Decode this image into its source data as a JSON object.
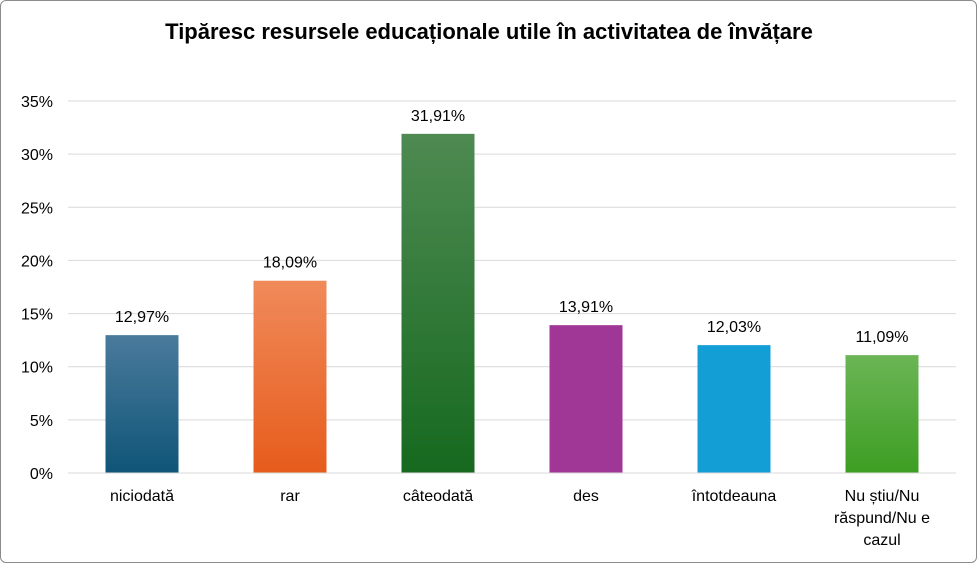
{
  "chart_data": {
    "type": "bar",
    "title": "Tipăresc resursele educaționale utile în activitatea de învățare",
    "xlabel": "",
    "ylabel": "",
    "categories": [
      "niciodată",
      "rar",
      "câteodată",
      "des",
      "întotdeauna",
      "Nu știu/Nu răspund/Nu e cazul"
    ],
    "category_lines": [
      [
        "niciodată"
      ],
      [
        "rar"
      ],
      [
        "câteodată"
      ],
      [
        "des"
      ],
      [
        "întotdeauna"
      ],
      [
        "Nu știu/Nu",
        "răspund/Nu e",
        "cazul"
      ]
    ],
    "values": [
      12.97,
      18.09,
      31.91,
      13.91,
      12.03,
      11.09
    ],
    "value_labels": [
      "12,97%",
      "18,09%",
      "31,91%",
      "13,91%",
      "12,03%",
      "11,09%"
    ],
    "ylim": [
      0,
      35
    ],
    "yticks": [
      0,
      5,
      10,
      15,
      20,
      25,
      30,
      35
    ],
    "ytick_labels": [
      "0%",
      "5%",
      "10%",
      "15%",
      "20%",
      "25%",
      "30%",
      "35%"
    ],
    "grid": true,
    "legend": "none",
    "bar_colors": [
      [
        "#4a7a9c",
        "#0f5577"
      ],
      [
        "#f08a5a",
        "#e65c1c"
      ],
      [
        "#4e8a52",
        "#16691f"
      ],
      [
        "#a03797",
        "#a03797"
      ],
      [
        "#149ed6",
        "#149ed6"
      ],
      [
        "#6bb556",
        "#3d9e22"
      ]
    ],
    "gridline_color": "#d9d9d9"
  }
}
